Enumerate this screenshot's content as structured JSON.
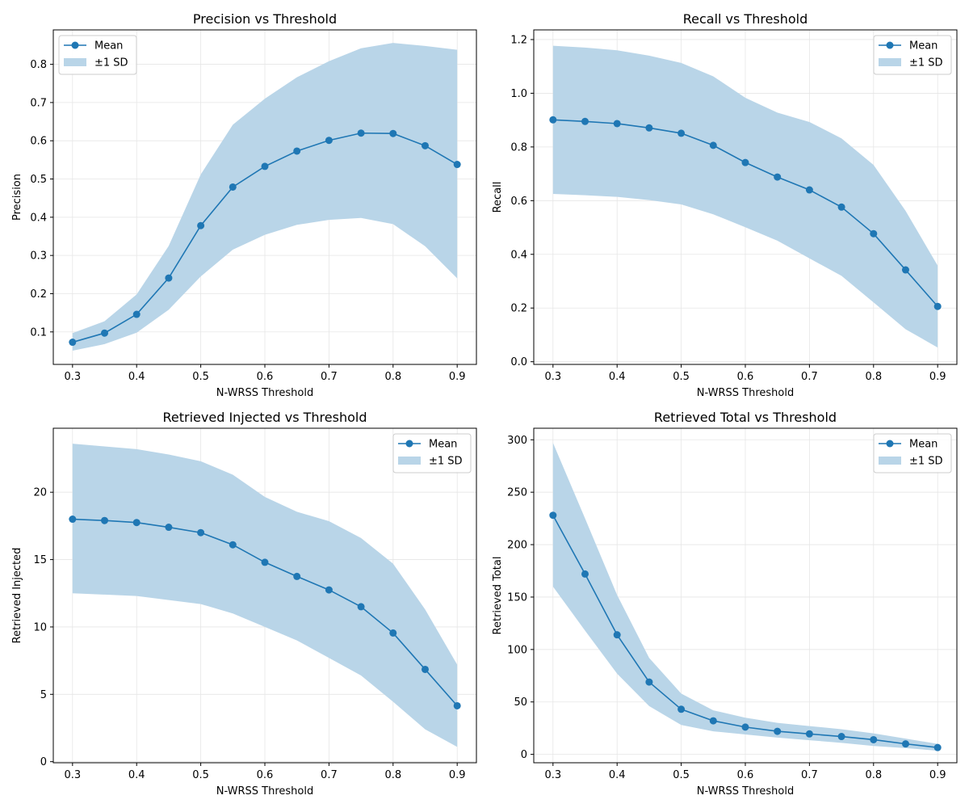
{
  "chart_data": [
    {
      "type": "line",
      "title": "Precision vs Threshold",
      "xlabel": "N-WRSS Threshold",
      "ylabel": "Precision",
      "x": [
        0.3,
        0.35,
        0.4,
        0.45,
        0.5,
        0.55,
        0.6,
        0.65,
        0.7,
        0.75,
        0.8,
        0.85,
        0.9
      ],
      "mean": [
        0.073,
        0.097,
        0.146,
        0.241,
        0.378,
        0.479,
        0.533,
        0.573,
        0.601,
        0.62,
        0.619,
        0.587,
        0.538
      ],
      "sd_upper": [
        0.097,
        0.128,
        0.198,
        0.325,
        0.512,
        0.642,
        0.71,
        0.766,
        0.808,
        0.842,
        0.856,
        0.848,
        0.838
      ],
      "sd_lower": [
        0.051,
        0.068,
        0.098,
        0.158,
        0.245,
        0.315,
        0.354,
        0.38,
        0.393,
        0.398,
        0.382,
        0.324,
        0.24
      ],
      "xlim": [
        0.27,
        0.93
      ],
      "ylim": [
        0.015,
        0.89
      ],
      "xticks": [
        0.3,
        0.4,
        0.5,
        0.6,
        0.7,
        0.8,
        0.9
      ],
      "xtick_labels": [
        "0.3",
        "0.4",
        "0.5",
        "0.6",
        "0.7",
        "0.8",
        "0.9"
      ],
      "yticks": [
        0.1,
        0.2,
        0.3,
        0.4,
        0.5,
        0.6,
        0.7,
        0.8
      ],
      "ytick_labels": [
        "0.1",
        "0.2",
        "0.3",
        "0.4",
        "0.5",
        "0.6",
        "0.7",
        "0.8"
      ],
      "grid": true,
      "legend_position": "top-left",
      "legend": [
        "Mean",
        "±1 SD"
      ]
    },
    {
      "type": "line",
      "title": "Recall vs Threshold",
      "xlabel": "N-WRSS Threshold",
      "ylabel": "Recall",
      "x": [
        0.3,
        0.35,
        0.4,
        0.45,
        0.5,
        0.55,
        0.6,
        0.65,
        0.7,
        0.75,
        0.8,
        0.85,
        0.9
      ],
      "mean": [
        0.901,
        0.895,
        0.887,
        0.871,
        0.851,
        0.806,
        0.742,
        0.688,
        0.64,
        0.576,
        0.477,
        0.342,
        0.206
      ],
      "sd_upper": [
        1.177,
        1.17,
        1.16,
        1.14,
        1.113,
        1.063,
        0.983,
        0.928,
        0.893,
        0.832,
        0.733,
        0.562,
        0.358
      ],
      "sd_lower": [
        0.625,
        0.62,
        0.614,
        0.602,
        0.586,
        0.549,
        0.501,
        0.451,
        0.385,
        0.32,
        0.221,
        0.121,
        0.053
      ],
      "xlim": [
        0.27,
        0.93
      ],
      "ylim": [
        -0.01,
        1.236
      ],
      "xticks": [
        0.3,
        0.4,
        0.5,
        0.6,
        0.7,
        0.8,
        0.9
      ],
      "xtick_labels": [
        "0.3",
        "0.4",
        "0.5",
        "0.6",
        "0.7",
        "0.8",
        "0.9"
      ],
      "yticks": [
        0,
        0.2,
        0.4,
        0.6,
        0.8,
        1.0,
        1.2
      ],
      "ytick_labels": [
        "0.0",
        "0.2",
        "0.4",
        "0.6",
        "0.8",
        "1.0",
        "1.2"
      ],
      "grid": true,
      "legend_position": "top-right",
      "legend": [
        "Mean",
        "±1 SD"
      ]
    },
    {
      "type": "line",
      "title": "Retrieved Injected vs Threshold",
      "xlabel": "N-WRSS Threshold",
      "ylabel": "Retrieved Injected",
      "x": [
        0.3,
        0.35,
        0.4,
        0.45,
        0.5,
        0.55,
        0.6,
        0.65,
        0.7,
        0.75,
        0.8,
        0.85,
        0.9
      ],
      "mean": [
        18.0,
        17.9,
        17.75,
        17.4,
        17.0,
        16.1,
        14.8,
        13.75,
        12.75,
        11.5,
        9.55,
        6.85,
        4.15
      ],
      "sd_upper": [
        23.6,
        23.4,
        23.2,
        22.8,
        22.3,
        21.3,
        19.65,
        18.55,
        17.85,
        16.6,
        14.7,
        11.3,
        7.2
      ],
      "sd_lower": [
        12.5,
        12.4,
        12.3,
        12.0,
        11.7,
        11.0,
        10.0,
        9.0,
        7.7,
        6.4,
        4.45,
        2.4,
        1.1
      ],
      "xlim": [
        0.27,
        0.93
      ],
      "ylim": [
        -0.08,
        24.75
      ],
      "xticks": [
        0.3,
        0.4,
        0.5,
        0.6,
        0.7,
        0.8,
        0.9
      ],
      "xtick_labels": [
        "0.3",
        "0.4",
        "0.5",
        "0.6",
        "0.7",
        "0.8",
        "0.9"
      ],
      "yticks": [
        0,
        5,
        10,
        15,
        20
      ],
      "ytick_labels": [
        "0",
        "5",
        "10",
        "15",
        "20"
      ],
      "grid": true,
      "legend_position": "top-right",
      "legend": [
        "Mean",
        "±1 SD"
      ]
    },
    {
      "type": "line",
      "title": "Retrieved Total vs Threshold",
      "xlabel": "N-WRSS Threshold",
      "ylabel": "Retrieved Total",
      "x": [
        0.3,
        0.35,
        0.4,
        0.45,
        0.5,
        0.55,
        0.6,
        0.65,
        0.7,
        0.75,
        0.8,
        0.85,
        0.9
      ],
      "mean": [
        228,
        172,
        114,
        69,
        43,
        32,
        26,
        22,
        19.5,
        17,
        14,
        10,
        6.5
      ],
      "sd_upper": [
        297,
        225,
        152,
        92,
        58,
        42,
        35,
        30,
        27,
        24,
        20,
        15,
        10
      ],
      "sd_lower": [
        160,
        118,
        77,
        46,
        28,
        22,
        19,
        16,
        13.5,
        11,
        8,
        6,
        3.5
      ],
      "xlim": [
        0.27,
        0.93
      ],
      "ylim": [
        -8,
        311
      ],
      "xticks": [
        0.3,
        0.4,
        0.5,
        0.6,
        0.7,
        0.8,
        0.9
      ],
      "xtick_labels": [
        "0.3",
        "0.4",
        "0.5",
        "0.6",
        "0.7",
        "0.8",
        "0.9"
      ],
      "yticks": [
        0,
        50,
        100,
        150,
        200,
        250,
        300
      ],
      "ytick_labels": [
        "0",
        "50",
        "100",
        "150",
        "200",
        "250",
        "300"
      ],
      "grid": true,
      "legend_position": "top-right",
      "legend": [
        "Mean",
        "±1 SD"
      ]
    }
  ],
  "colors": {
    "line": "#1f77b4",
    "band": "#b9d5e8",
    "grid": "#e6e6e6",
    "legend_border": "#cccccc"
  }
}
